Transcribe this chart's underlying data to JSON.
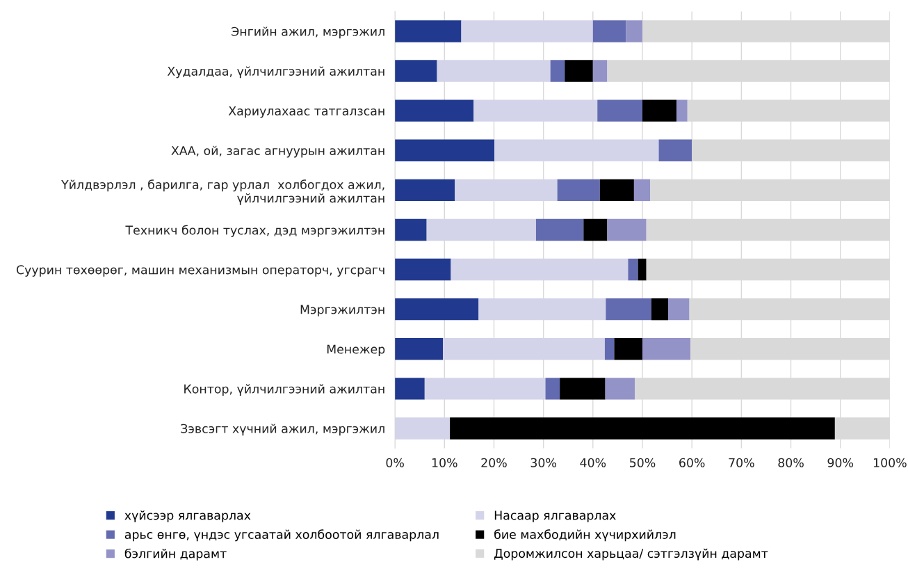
{
  "chart_data": {
    "type": "bar",
    "orientation": "horizontal",
    "stacked": true,
    "categories": [
      "Энгийн ажил, мэргэжил",
      "Худалдаа, үйлчилгээний ажилтан",
      "Хариулахаас татгалзсан",
      "ХАА, ой, загас агнуурын ажилтан",
      "Үйлдвэрлэл , барилга, гар урлал  холбогдох ажил,\nүйлчилгээний ажилтан",
      "Техникч болон туслах, дэд мэргэжилтэн",
      "Суурин төхөөрөг, машин механизмын операторч, угсрагч",
      "Мэргэжилтэн",
      "Менежер",
      "Контор, үйлчилгээний ажилтан",
      "Зэвсэгт хүчний ажил, мэргэжил"
    ],
    "series": [
      {
        "name": "хүйсээр ялгаварлах",
        "color": "#213a8f",
        "values": [
          13.4,
          8.5,
          15.9,
          20.1,
          12.1,
          6.4,
          11.3,
          16.9,
          9.7,
          6.0,
          0
        ]
      },
      {
        "name": "Насаар ялгаварлах",
        "color": "#d3d3ea",
        "values": [
          26.6,
          22.9,
          25.0,
          33.2,
          20.7,
          22.1,
          35.8,
          25.7,
          32.7,
          24.4,
          11.1
        ]
      },
      {
        "name": "арьс өнгө, үндэс угсаатай холбоотой ялгаварлал",
        "color": "#636bb0",
        "values": [
          6.7,
          2.9,
          9.1,
          6.7,
          8.6,
          9.6,
          2.0,
          9.2,
          1.9,
          2.9,
          0
        ]
      },
      {
        "name": "бие махбодийн хүчирхийлэл",
        "color": "#000000",
        "values": [
          0,
          5.7,
          6.9,
          0,
          6.9,
          4.8,
          1.7,
          3.4,
          5.7,
          9.2,
          77.8
        ]
      },
      {
        "name": "бэлгийн дарамт",
        "color": "#9393c8",
        "values": [
          3.3,
          2.9,
          2.2,
          0,
          3.3,
          7.9,
          0,
          4.3,
          9.7,
          6.0,
          0
        ]
      },
      {
        "name": "Доромжилсон харьцаа/ сэтгэлзүйн дарамт",
        "color": "#d9d9d9",
        "values": [
          50.0,
          57.1,
          40.9,
          40.0,
          48.4,
          49.2,
          49.2,
          40.5,
          40.3,
          51.5,
          11.1
        ]
      }
    ],
    "xlim": [
      0,
      100
    ],
    "xticks": [
      {
        "value": 0,
        "label": "0%"
      },
      {
        "value": 10,
        "label": "10%"
      },
      {
        "value": 20,
        "label": "20%"
      },
      {
        "value": 30,
        "label": "30%"
      },
      {
        "value": 40,
        "label": "40%"
      },
      {
        "value": 50,
        "label": "50%"
      },
      {
        "value": 60,
        "label": "60%"
      },
      {
        "value": 70,
        "label": "70%"
      },
      {
        "value": 80,
        "label": "80%"
      },
      {
        "value": 90,
        "label": "90%"
      },
      {
        "value": 100,
        "label": "100%"
      }
    ],
    "grid": "x",
    "legend": "bottom"
  }
}
